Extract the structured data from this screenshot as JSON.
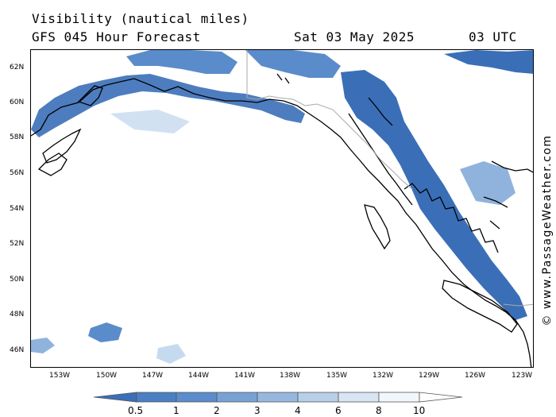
{
  "header": {
    "title": "Visibility (nautical miles)",
    "subtitle": "GFS 045 Hour Forecast",
    "date": "Sat 03 May 2025",
    "time": "03 UTC"
  },
  "credit": "© www.PassageWeather.com",
  "colors": {
    "very_low": "#3a6fb8",
    "low": "#5a8ccb",
    "medium": "#8fb3dc",
    "high": "#c6daef",
    "land_line": "#000000",
    "border_line": "#aaaaaa"
  },
  "map": {
    "lat_labels": [
      "62N",
      "60N",
      "58N",
      "56N",
      "54N",
      "52N",
      "50N",
      "48N",
      "46N"
    ],
    "lon_labels": [
      "153W",
      "150W",
      "147W",
      "144W",
      "141W",
      "138W",
      "135W",
      "132W",
      "129W",
      "126W",
      "123W"
    ],
    "lat_range": [
      45,
      63
    ],
    "lon_range": [
      -155.5,
      -122.5
    ]
  },
  "legend": {
    "labels": [
      "0.5",
      "1",
      "2",
      "3",
      "4",
      "6",
      "8",
      "10"
    ],
    "colors": [
      "#3a6fb8",
      "#4a7fc3",
      "#5b8ccb",
      "#78a2d4",
      "#97b8de",
      "#b8cfe8",
      "#d8e6f4",
      "#f2f7fc",
      "#ffffff"
    ]
  }
}
